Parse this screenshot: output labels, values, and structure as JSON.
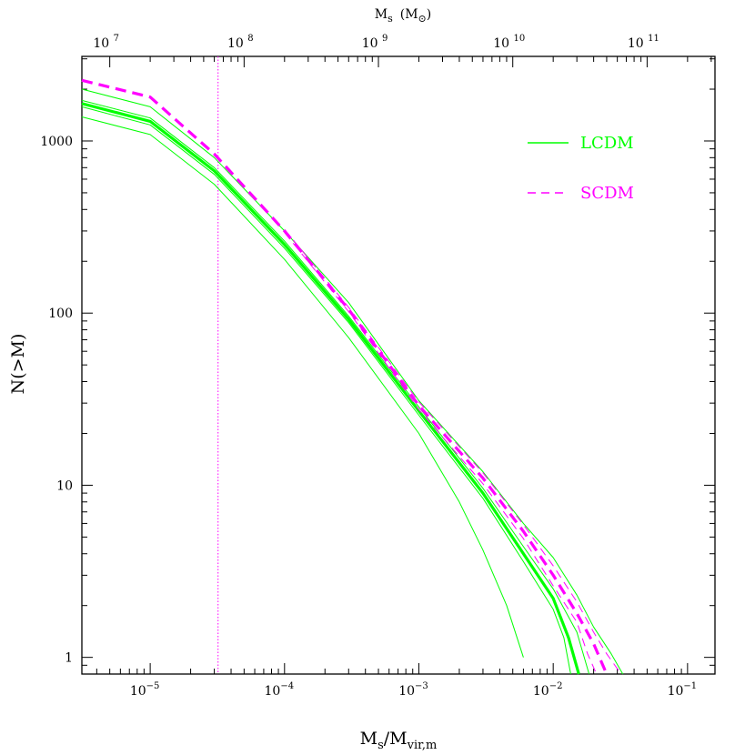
{
  "chart_data": {
    "type": "line",
    "scale": {
      "x": "log",
      "y": "log"
    },
    "xlim": [
      3.1e-06,
      0.16
    ],
    "ylim": [
      0.8,
      3100
    ],
    "x_ticks": [
      {
        "value": 1e-05,
        "label": "10",
        "exp": "−5"
      },
      {
        "value": 0.0001,
        "label": "10",
        "exp": "−4"
      },
      {
        "value": 0.001,
        "label": "10",
        "exp": "−3"
      },
      {
        "value": 0.01,
        "label": "10",
        "exp": "−2"
      },
      {
        "value": 0.1,
        "label": "10",
        "exp": "−1"
      }
    ],
    "top_ticks": [
      {
        "value": 5e-06,
        "label": "10",
        "exp": "7"
      },
      {
        "value": 5e-05,
        "label": "10",
        "exp": "8"
      },
      {
        "value": 0.0005,
        "label": "10",
        "exp": "9"
      },
      {
        "value": 0.005,
        "label": "10",
        "exp": "10"
      },
      {
        "value": 0.05,
        "label": "10",
        "exp": "11"
      }
    ],
    "y_ticks": [
      {
        "value": 1,
        "label": "1"
      },
      {
        "value": 10,
        "label": "10"
      },
      {
        "value": 100,
        "label": "100"
      },
      {
        "value": 1000,
        "label": "1000"
      }
    ],
    "xlabel": {
      "main": "M",
      "sub1": "s",
      "sep": "/M",
      "sub2": "vir,m"
    },
    "ylabel": "N(>M)",
    "top_label": {
      "main": "M",
      "sub": "s",
      "unit_open": "(M",
      "unit_sym": "⊙",
      "unit_close": ")"
    },
    "vertical_line": {
      "x": 3.2e-05,
      "color": "#ff00ff"
    },
    "colors": {
      "lcdm": "#00ff00",
      "scdm": "#ff00ff"
    },
    "legend": [
      {
        "label": "LCDM",
        "style": "solid",
        "color": "#00ff00"
      },
      {
        "label": "SCDM",
        "style": "dashed",
        "color": "#ff00ff"
      }
    ],
    "legend_position": "upper-right",
    "series": [
      {
        "group": "lcdm-band-upper",
        "style": "solid",
        "color": "#00ff00",
        "width": 1,
        "points": [
          [
            3.1e-06,
            2000
          ],
          [
            1e-05,
            1580
          ],
          [
            3e-05,
            800
          ],
          [
            0.0001,
            300
          ],
          [
            0.0003,
            115
          ],
          [
            0.001,
            31
          ],
          [
            0.003,
            12
          ],
          [
            0.006,
            6
          ],
          [
            0.01,
            3.8
          ],
          [
            0.015,
            2.3
          ],
          [
            0.02,
            1.5
          ],
          [
            0.027,
            1.05
          ],
          [
            0.033,
            0.8
          ]
        ]
      },
      {
        "group": "lcdm-band-lower",
        "style": "solid",
        "color": "#00ff00",
        "width": 1,
        "points": [
          [
            3.1e-06,
            1380
          ],
          [
            1e-05,
            1090
          ],
          [
            3e-05,
            560
          ],
          [
            0.0001,
            205
          ],
          [
            0.0003,
            72
          ],
          [
            0.001,
            20
          ],
          [
            0.002,
            8
          ],
          [
            0.003,
            4.2
          ],
          [
            0.0045,
            2
          ],
          [
            0.006,
            1
          ]
        ]
      },
      {
        "group": "lcdm-mean",
        "style": "solid",
        "color": "#00ff00",
        "width": 3.2,
        "points": [
          [
            3.1e-06,
            1650
          ],
          [
            1e-05,
            1300
          ],
          [
            3e-05,
            670
          ],
          [
            0.0001,
            250
          ],
          [
            0.0003,
            92
          ],
          [
            0.001,
            27
          ],
          [
            0.003,
            9
          ],
          [
            0.006,
            4
          ],
          [
            0.01,
            2.2
          ],
          [
            0.013,
            1.3
          ],
          [
            0.0155,
            0.8
          ]
        ]
      },
      {
        "group": "lcdm-mean-upper",
        "style": "solid",
        "color": "#00ff00",
        "width": 1,
        "points": [
          [
            3.1e-06,
            1720
          ],
          [
            1e-05,
            1360
          ],
          [
            3e-05,
            700
          ],
          [
            0.0001,
            262
          ],
          [
            0.0003,
            96
          ],
          [
            0.001,
            28.5
          ],
          [
            0.003,
            9.6
          ],
          [
            0.006,
            4.4
          ],
          [
            0.01,
            2.5
          ],
          [
            0.015,
            1.4
          ],
          [
            0.0185,
            0.8
          ]
        ]
      },
      {
        "group": "lcdm-mean-lower",
        "style": "solid",
        "color": "#00ff00",
        "width": 1,
        "points": [
          [
            3.1e-06,
            1580
          ],
          [
            1e-05,
            1240
          ],
          [
            3e-05,
            640
          ],
          [
            0.0001,
            238
          ],
          [
            0.0003,
            88
          ],
          [
            0.001,
            25.5
          ],
          [
            0.003,
            8.4
          ],
          [
            0.006,
            3.6
          ],
          [
            0.01,
            1.9
          ],
          [
            0.012,
            1.3
          ],
          [
            0.0135,
            0.8
          ]
        ]
      },
      {
        "group": "scdm-mean",
        "style": "dashed",
        "color": "#ff00ff",
        "width": 3.2,
        "points": [
          [
            3.1e-06,
            2250
          ],
          [
            1e-05,
            1800
          ],
          [
            3e-05,
            840
          ],
          [
            0.0001,
            300
          ],
          [
            0.0003,
            105
          ],
          [
            0.001,
            29
          ],
          [
            0.003,
            11
          ],
          [
            0.006,
            5.4
          ],
          [
            0.01,
            3
          ],
          [
            0.015,
            1.8
          ],
          [
            0.02,
            1.2
          ],
          [
            0.025,
            0.8
          ]
        ]
      },
      {
        "group": "scdm-err-upper",
        "style": "dashed",
        "color": "#ff00ff",
        "width": 1,
        "points": [
          [
            0.0001,
            306
          ],
          [
            0.0003,
            108
          ],
          [
            0.001,
            30.5
          ],
          [
            0.003,
            11.8
          ],
          [
            0.006,
            5.9
          ],
          [
            0.01,
            3.4
          ],
          [
            0.015,
            2.1
          ],
          [
            0.02,
            1.4
          ],
          [
            0.025,
            1.05
          ],
          [
            0.032,
            0.8
          ]
        ]
      },
      {
        "group": "scdm-err-lower",
        "style": "dashed",
        "color": "#ff00ff",
        "width": 1,
        "points": [
          [
            0.0001,
            294
          ],
          [
            0.0003,
            102
          ],
          [
            0.001,
            27.5
          ],
          [
            0.003,
            10.2
          ],
          [
            0.006,
            4.9
          ],
          [
            0.01,
            2.6
          ],
          [
            0.015,
            1.6
          ],
          [
            0.018,
            1.05
          ],
          [
            0.021,
            0.8
          ]
        ]
      }
    ]
  }
}
